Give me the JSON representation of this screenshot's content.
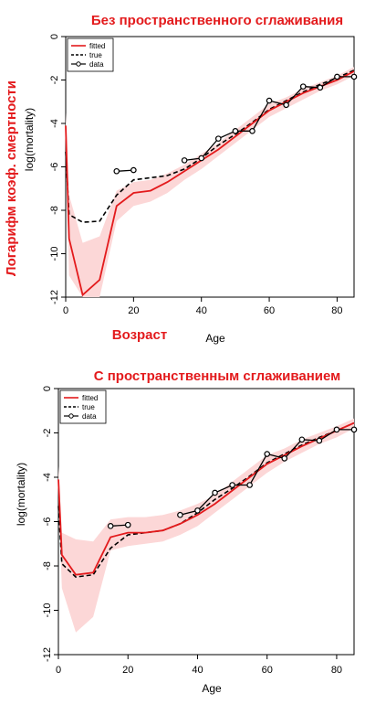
{
  "colors": {
    "fitted": "#e31a1c",
    "band": "#fcd7d7",
    "true": "#000000",
    "data": "#000000",
    "annotation": "#e31a1c"
  },
  "chart_data": [
    {
      "type": "line",
      "title": "Без пространственного сглаживания",
      "xlabel": "Age",
      "ylabel": "log(mortality)",
      "annotation_xlabel": "Возраст",
      "annotation_ylabel": "Логарифм коэф. смертности",
      "xlim": [
        0,
        85
      ],
      "ylim": [
        -12,
        0
      ],
      "x_ticks": [
        0,
        20,
        40,
        60,
        80
      ],
      "y_ticks": [
        0,
        -2,
        -4,
        -6,
        -8,
        -10,
        -12
      ],
      "legend": {
        "placement": "top-left",
        "entries": [
          "fitted",
          "true",
          "data"
        ]
      },
      "series": [
        {
          "name": "fitted",
          "style": "solid-red",
          "x": [
            0,
            1,
            5,
            10,
            15,
            20,
            25,
            30,
            35,
            40,
            45,
            50,
            55,
            60,
            65,
            70,
            75,
            80,
            85
          ],
          "values": [
            -4.1,
            -9.3,
            -11.9,
            -11.2,
            -7.8,
            -7.2,
            -7.1,
            -6.7,
            -6.2,
            -5.7,
            -5.2,
            -4.6,
            -4.0,
            -3.4,
            -3.0,
            -2.6,
            -2.3,
            -2.0,
            -1.6
          ]
        },
        {
          "name": "fitted-band-upper",
          "x": [
            0,
            1,
            5,
            10,
            15,
            20,
            25,
            30,
            35,
            40,
            45,
            50,
            55,
            60,
            65,
            70,
            75,
            80,
            85
          ],
          "values": [
            -3.5,
            -7.3,
            -9.5,
            -9.2,
            -7.1,
            -6.7,
            -6.6,
            -6.3,
            -5.9,
            -5.4,
            -4.9,
            -4.3,
            -3.7,
            -3.1,
            -2.8,
            -2.4,
            -2.1,
            -1.8,
            -1.4
          ]
        },
        {
          "name": "fitted-band-lower",
          "x": [
            0,
            1,
            5,
            10,
            15,
            20,
            25,
            30,
            35,
            40,
            45,
            50,
            55,
            60,
            65,
            70,
            75,
            80,
            85
          ],
          "values": [
            -4.8,
            -11.0,
            -12.0,
            -12.0,
            -8.5,
            -7.8,
            -7.6,
            -7.2,
            -6.6,
            -6.1,
            -5.5,
            -4.9,
            -4.3,
            -3.7,
            -3.3,
            -2.9,
            -2.5,
            -2.2,
            -1.8
          ]
        },
        {
          "name": "true",
          "style": "dashed-black",
          "x": [
            0,
            1,
            5,
            10,
            15,
            20,
            25,
            30,
            35,
            40,
            45,
            50,
            55,
            60,
            65,
            70,
            75,
            80,
            85
          ],
          "values": [
            -5.3,
            -8.2,
            -8.55,
            -8.5,
            -7.3,
            -6.6,
            -6.5,
            -6.4,
            -6.1,
            -5.6,
            -5.0,
            -4.5,
            -3.95,
            -3.35,
            -2.95,
            -2.55,
            -2.2,
            -1.9,
            -1.55
          ]
        },
        {
          "name": "data-segment-1",
          "style": "points-black",
          "x": [
            15,
            20
          ],
          "values": [
            -6.2,
            -6.15
          ]
        },
        {
          "name": "data-segment-2",
          "style": "points-black",
          "x": [
            35,
            40,
            45,
            50,
            55,
            60,
            65,
            70,
            75,
            80,
            85
          ],
          "values": [
            -5.7,
            -5.6,
            -4.7,
            -4.35,
            -4.35,
            -2.95,
            -3.15,
            -2.3,
            -2.35,
            -1.85,
            -1.85
          ]
        }
      ]
    },
    {
      "type": "line",
      "title": "С пространственным сглаживанием",
      "xlabel": "Age",
      "ylabel": "log(mortality)",
      "xlim": [
        0,
        85
      ],
      "ylim": [
        -12,
        0
      ],
      "x_ticks": [
        0,
        20,
        40,
        60,
        80
      ],
      "y_ticks": [
        0,
        -2,
        -4,
        -6,
        -8,
        -10,
        -12
      ],
      "legend": {
        "placement": "top-left",
        "entries": [
          "fitted",
          "true",
          "data"
        ]
      },
      "series": [
        {
          "name": "fitted",
          "style": "solid-red",
          "x": [
            0,
            1,
            5,
            10,
            15,
            20,
            25,
            30,
            35,
            40,
            45,
            50,
            55,
            60,
            65,
            70,
            75,
            80,
            85
          ],
          "values": [
            -4.1,
            -7.5,
            -8.4,
            -8.3,
            -6.7,
            -6.5,
            -6.5,
            -6.4,
            -6.1,
            -5.7,
            -5.2,
            -4.6,
            -4.0,
            -3.4,
            -3.0,
            -2.6,
            -2.25,
            -1.9,
            -1.55
          ]
        },
        {
          "name": "fitted-band-upper",
          "x": [
            0,
            1,
            5,
            10,
            15,
            20,
            25,
            30,
            35,
            40,
            45,
            50,
            55,
            60,
            65,
            70,
            75,
            80,
            85
          ],
          "values": [
            -3.5,
            -6.5,
            -6.8,
            -6.9,
            -5.9,
            -5.8,
            -5.8,
            -5.7,
            -5.5,
            -5.2,
            -4.8,
            -4.2,
            -3.6,
            -3.0,
            -2.7,
            -2.3,
            -2.0,
            -1.7,
            -1.35
          ]
        },
        {
          "name": "fitted-band-lower",
          "x": [
            0,
            1,
            5,
            10,
            15,
            20,
            25,
            30,
            35,
            40,
            45,
            50,
            55,
            60,
            65,
            70,
            75,
            80,
            85
          ],
          "values": [
            -4.8,
            -9.0,
            -11.0,
            -10.3,
            -7.3,
            -7.1,
            -7.0,
            -6.9,
            -6.6,
            -6.2,
            -5.6,
            -5.0,
            -4.4,
            -3.8,
            -3.3,
            -2.9,
            -2.5,
            -2.2,
            -1.8
          ]
        },
        {
          "name": "true",
          "style": "dashed-black",
          "x": [
            0,
            1,
            5,
            10,
            15,
            20,
            25,
            30,
            35,
            40,
            45,
            50,
            55,
            60,
            65,
            70,
            75,
            80,
            85
          ],
          "values": [
            -5.3,
            -7.9,
            -8.5,
            -8.4,
            -7.2,
            -6.6,
            -6.5,
            -6.4,
            -6.1,
            -5.6,
            -5.0,
            -4.5,
            -3.95,
            -3.35,
            -2.95,
            -2.55,
            -2.2,
            -1.9,
            -1.55
          ]
        },
        {
          "name": "data-segment-1",
          "style": "points-black",
          "x": [
            15,
            20
          ],
          "values": [
            -6.2,
            -6.15
          ]
        },
        {
          "name": "data-segment-2",
          "style": "points-black",
          "x": [
            35,
            40,
            45,
            50,
            55,
            60,
            65,
            70,
            75,
            80,
            85
          ],
          "values": [
            -5.7,
            -5.5,
            -4.7,
            -4.35,
            -4.35,
            -2.95,
            -3.15,
            -2.3,
            -2.35,
            -1.85,
            -1.85
          ]
        }
      ]
    }
  ]
}
